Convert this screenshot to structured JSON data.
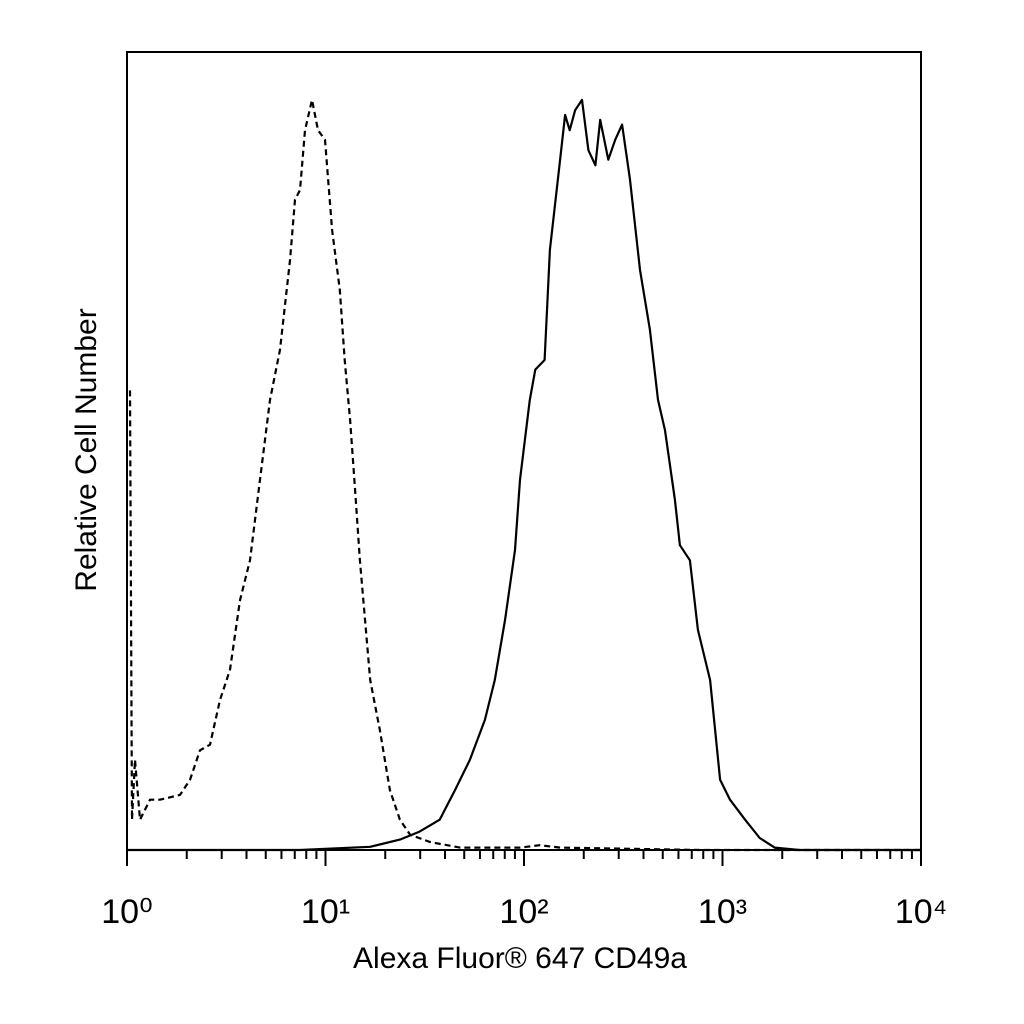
{
  "chart_data": {
    "type": "line",
    "x_label": "Alexa Fluor® 647 CD49a",
    "y_label": "Relative Cell Number",
    "xscale": "log",
    "xlim": [
      1,
      10000
    ],
    "ylim": [
      0,
      100
    ],
    "xticks": [
      {
        "value": 1,
        "label": "10⁰"
      },
      {
        "value": 10,
        "label": "10¹"
      },
      {
        "value": 100,
        "label": "10²"
      },
      {
        "value": 1000,
        "label": "10³"
      },
      {
        "value": 10000,
        "label": "10⁴"
      }
    ],
    "xminorticks": [
      2,
      3,
      4,
      5,
      6,
      7,
      8,
      9,
      20,
      30,
      40,
      50,
      60,
      70,
      80,
      90,
      200,
      300,
      400,
      500,
      600,
      700,
      800,
      900,
      2000,
      3000,
      4000,
      5000,
      6000,
      7000,
      8000,
      9000
    ],
    "series": [
      {
        "color": "#000000",
        "style": "dashed",
        "x": [
          1.035,
          1.06,
          1.097,
          1.163,
          1.306,
          1.466,
          1.849,
          2.077,
          2.333,
          2.619,
          2.941,
          3.303,
          3.709,
          4.165,
          4.677,
          5.252,
          5.898,
          6.624,
          7.02,
          7.44,
          7.88,
          8.55,
          9.17,
          9.94,
          10.8,
          11.8,
          12.5,
          13.3,
          14.1,
          14.9,
          16.8,
          18.8,
          21.1,
          23.7,
          26.7,
          33.6,
          47.6,
          95.5,
          120,
          152,
          771,
          9890
        ],
        "values": [
          57.6,
          3.8,
          11.3,
          3.8,
          6.3,
          6.3,
          6.9,
          8.8,
          12.5,
          13.2,
          18.8,
          22.6,
          31.3,
          36.3,
          46.4,
          56.4,
          62.7,
          73.9,
          81.5,
          82.7,
          90.2,
          94,
          90.2,
          89,
          77.7,
          70.2,
          61.4,
          53.9,
          45.1,
          36.3,
          21.3,
          15,
          7.5,
          3.8,
          1.9,
          1,
          0.3,
          0.3,
          0.6,
          0.3,
          0,
          0
        ]
      },
      {
        "color": "#000000",
        "style": "solid",
        "x": [
          1,
          7.44,
          16.8,
          23.7,
          29.8,
          37.6,
          44.9,
          53.4,
          63.5,
          71.3,
          80.2,
          90.1,
          95.5,
          107,
          114,
          127,
          135,
          152,
          161,
          170,
          181,
          196,
          211,
          229,
          242,
          266,
          288,
          312,
          342,
          384,
          431,
          473,
          513,
          576,
          610,
          685,
          752,
          866,
          972,
          1091,
          1300,
          1540,
          1830,
          2440,
          9890
        ],
        "values": [
          0,
          0,
          0.4,
          1.3,
          2.3,
          3.8,
          7.5,
          11.3,
          16.3,
          21.3,
          28.8,
          37.6,
          46.4,
          56.4,
          60.2,
          61.4,
          75.2,
          86.5,
          92.1,
          90.2,
          92.7,
          94,
          87.7,
          85.8,
          91.5,
          86.5,
          89,
          90.9,
          84,
          72.7,
          65.2,
          56.4,
          52.6,
          43.9,
          38.2,
          36.3,
          27.6,
          21.3,
          8.8,
          6.3,
          3.8,
          1.5,
          0.3,
          0,
          0
        ]
      }
    ]
  }
}
